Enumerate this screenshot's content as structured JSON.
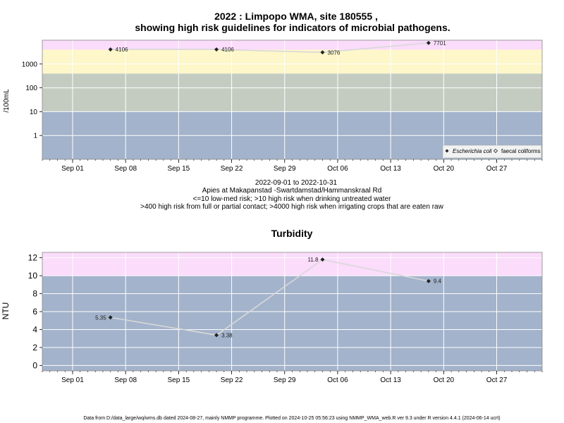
{
  "chart_data": [
    {
      "type": "line",
      "title_line1": "2022 : Limpopo WMA, site 180555 ,",
      "title_line2": "showing high risk guidelines for indicators of microbial pathogens.",
      "ylabel": "/100mL",
      "yscale": "log",
      "ylim": [
        0.1,
        10000
      ],
      "y_ticks": [
        1,
        10,
        100,
        1000
      ],
      "y_tick_labels": [
        "1",
        "10",
        "100",
        "1000"
      ],
      "x_ticks": [
        "2022-09-01",
        "2022-09-08",
        "2022-09-15",
        "2022-09-22",
        "2022-09-29",
        "2022-10-06",
        "2022-10-13",
        "2022-10-20",
        "2022-10-27"
      ],
      "x_tick_labels": [
        "Sep 01",
        "Sep 08",
        "Sep 15",
        "Sep 22",
        "Sep 29",
        "Oct 06",
        "Oct 13",
        "Oct 20",
        "Oct 27"
      ],
      "xlim": [
        "2022-08-28",
        "2022-11-02"
      ],
      "bands": [
        {
          "from": 0.1,
          "to": 10,
          "color": "#a3b3cb"
        },
        {
          "from": 10,
          "to": 400,
          "color": "#c4ccc2"
        },
        {
          "from": 400,
          "to": 4000,
          "color": "#fdf7c9"
        },
        {
          "from": 4000,
          "to": 10000,
          "color": "#fbdcfb"
        }
      ],
      "series": [
        {
          "name": "Escherichia coli",
          "x": [
            "2022-09-06",
            "2022-09-20",
            "2022-10-04",
            "2022-10-18"
          ],
          "y": [
            4106,
            4106,
            3076,
            7701
          ],
          "labels": [
            "4106",
            "4106",
            "3076",
            "7701"
          ],
          "marker": "filled-diamond"
        }
      ],
      "legend": {
        "position": "bottom-right",
        "items": [
          {
            "label": "Escherichia coli",
            "marker": "filled-diamond"
          },
          {
            "label": "faecal coliforms",
            "marker": "open-diamond"
          }
        ]
      },
      "subtitle_lines": [
        "2022-09-01 to 2022-10-31",
        "Apies at Makapanstad -Swartdamstad/Hammanskraal Rd",
        "<=10 low-med risk; >10 high risk when drinking untreated water",
        ">400 high risk from full or partial contact; >4000 high risk when irrigating crops that are eaten raw"
      ]
    },
    {
      "type": "line",
      "title": "Turbidity",
      "ylabel": "NTU",
      "ylim": [
        -0.6,
        12.6
      ],
      "y_ticks": [
        0,
        2,
        4,
        6,
        8,
        10,
        12
      ],
      "y_tick_labels": [
        "0",
        "2",
        "4",
        "6",
        "8",
        "10",
        "12"
      ],
      "x_ticks": [
        "2022-09-01",
        "2022-09-08",
        "2022-09-15",
        "2022-09-22",
        "2022-09-29",
        "2022-10-06",
        "2022-10-13",
        "2022-10-20",
        "2022-10-27"
      ],
      "x_tick_labels": [
        "Sep 01",
        "Sep 08",
        "Sep 15",
        "Sep 22",
        "Sep 29",
        "Oct 06",
        "Oct 13",
        "Oct 20",
        "Oct 27"
      ],
      "xlim": [
        "2022-08-28",
        "2022-11-02"
      ],
      "bands": [
        {
          "from": -0.6,
          "to": 10,
          "color": "#a3b3cb"
        },
        {
          "from": 10,
          "to": 12.6,
          "color": "#fbdcfb"
        }
      ],
      "series": [
        {
          "x": [
            "2022-09-06",
            "2022-09-20",
            "2022-10-04",
            "2022-10-18"
          ],
          "y": [
            5.35,
            3.38,
            11.8,
            9.4
          ],
          "labels": [
            "5.35",
            "3.38",
            "11.8",
            "9.4"
          ],
          "label_side": [
            "left",
            "right",
            "left",
            "right"
          ],
          "marker": "filled-diamond"
        }
      ]
    }
  ],
  "footer": "Data from D:/data_large/wq/wms.db dated 2024-08-27, mainly NMMP programme. Plotted on 2024-10-25 05:56:23 using NMMP_WMA_web.R ver 9.3 under R version 4.4.1 (2024-06-14 ucrt)",
  "colors": {
    "axis_text": "#000000",
    "series_line": "#d8d8d8",
    "marker": "#222222",
    "grid": "#ffffff"
  }
}
